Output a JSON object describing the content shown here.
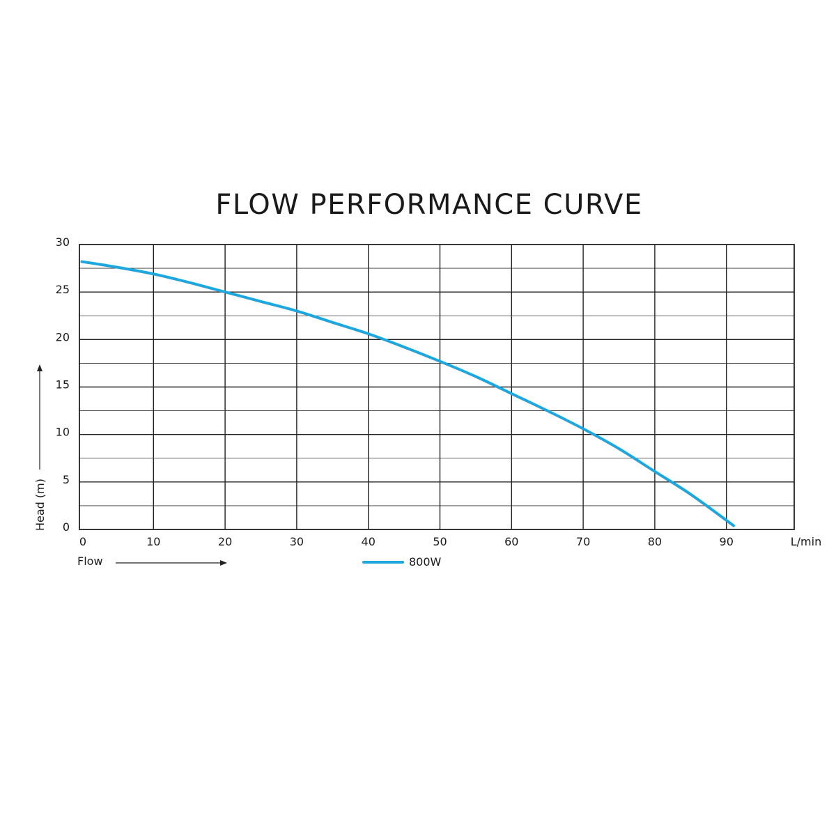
{
  "chart_data": {
    "type": "line",
    "title": "FLOW PERFORMANCE CURVE",
    "xlabel": "Flow",
    "xunit": "L/min",
    "ylabel": "Head (m)",
    "xlim": [
      0,
      100
    ],
    "ylim": [
      0,
      30
    ],
    "x_ticks": [
      0,
      10,
      20,
      30,
      40,
      50,
      60,
      70,
      80,
      90
    ],
    "y_ticks": [
      0,
      5,
      10,
      15,
      20,
      25,
      30
    ],
    "y_minor_step": 2.5,
    "grid": true,
    "legend_position": "bottom-center",
    "series": [
      {
        "name": "800W",
        "color": "#1ea7de",
        "x": [
          0,
          5,
          10,
          15,
          20,
          25,
          30,
          35,
          40,
          45,
          50,
          55,
          60,
          65,
          70,
          75,
          80,
          85,
          91
        ],
        "y": [
          28.2,
          27.6,
          26.9,
          26.0,
          25.0,
          24.0,
          23.0,
          21.8,
          20.6,
          19.2,
          17.7,
          16.1,
          14.3,
          12.5,
          10.6,
          8.5,
          6.1,
          3.7,
          0.4
        ]
      }
    ]
  }
}
